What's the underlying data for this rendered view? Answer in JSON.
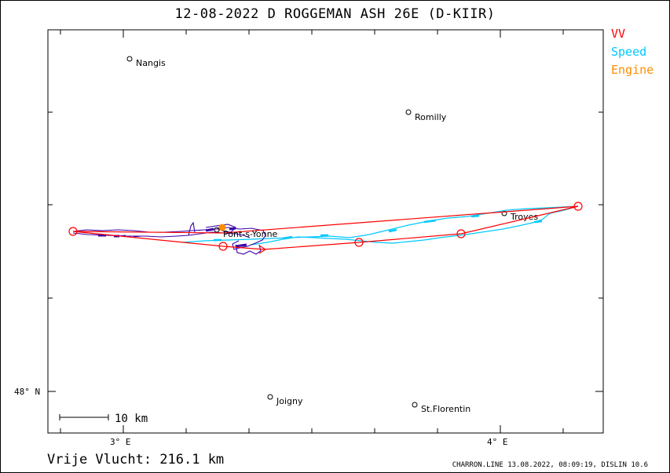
{
  "header": {
    "title": "12-08-2022   D ROGGEMAN   ASH 26E (D-KIIR)"
  },
  "legend": {
    "items": [
      {
        "label": "VV",
        "color": "#ff0000"
      },
      {
        "label": "Speed",
        "color": "#00c8ff"
      },
      {
        "label": "Engine",
        "color": "#ff8c00"
      }
    ]
  },
  "axes": {
    "lon_ticks": [
      {
        "label": "3° E"
      },
      {
        "label": "4° E"
      }
    ],
    "lat_ticks": [
      {
        "label": "48° N"
      }
    ]
  },
  "towns": [
    {
      "name": "Nangis"
    },
    {
      "name": "Romilly"
    },
    {
      "name": "Troyes"
    },
    {
      "name": "Pont-s-Yonne"
    },
    {
      "name": "Joigny"
    },
    {
      "name": "St.Florentin"
    }
  ],
  "scale_bar": {
    "label": "10 km"
  },
  "footer": {
    "distance": "Vrije Vlucht:  216.1 km",
    "credit": "CHARRON.LINE 13.08.2022, 08:09:19, DISLIN 10.6"
  },
  "colors": {
    "track_climb": "#3a00a8",
    "track_speed": "#00c8ff",
    "task": "#ff0000",
    "engine": "#ff8c00"
  }
}
